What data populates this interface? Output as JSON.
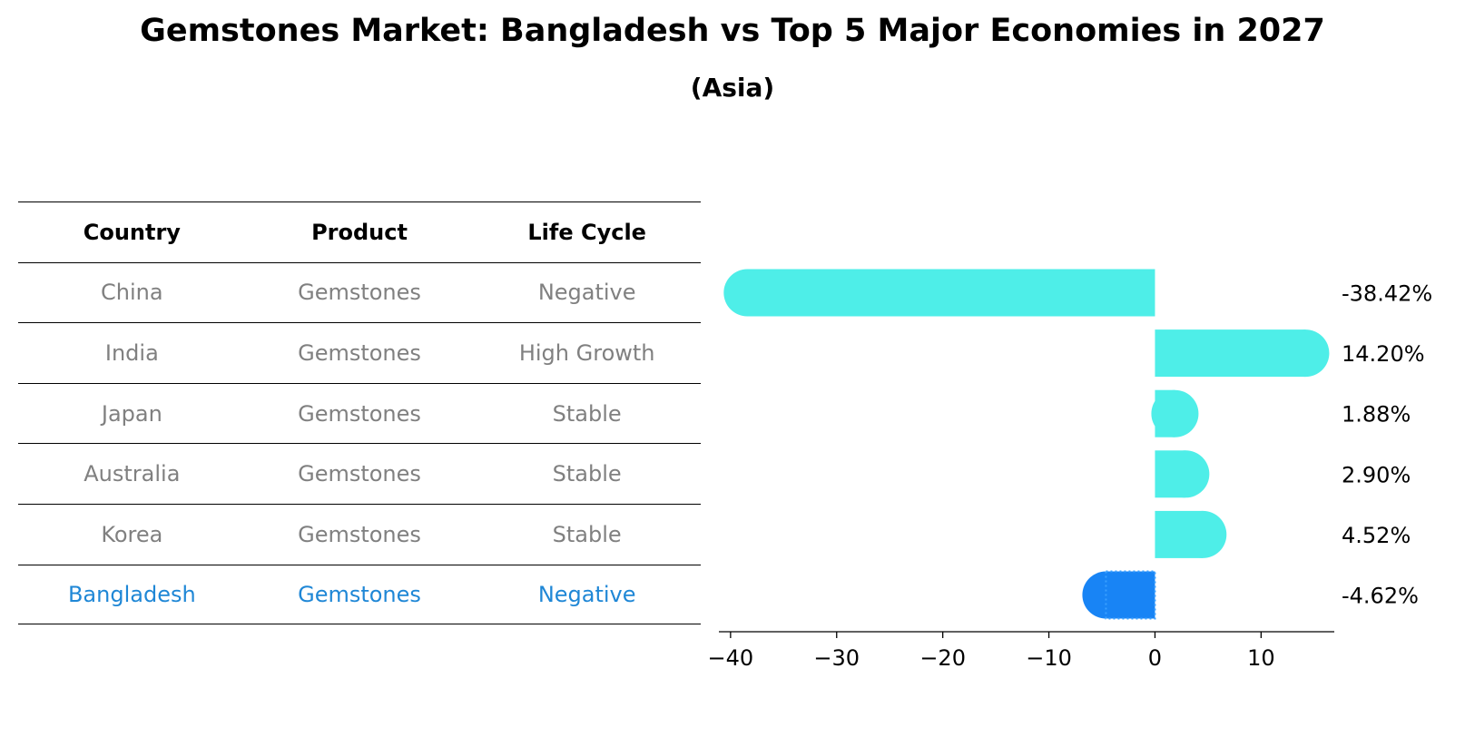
{
  "chart_data": {
    "type": "bar",
    "title": "Gemstones Market: Bangladesh vs Top 5 Major Economies in 2027",
    "subtitle": "(Asia)",
    "table": {
      "headers": [
        "Country",
        "Product",
        "Life Cycle"
      ],
      "rows": [
        [
          "China",
          "Gemstones",
          "Negative"
        ],
        [
          "India",
          "Gemstones",
          "High Growth"
        ],
        [
          "Japan",
          "Gemstones",
          "Stable"
        ],
        [
          "Australia",
          "Gemstones",
          "Stable"
        ],
        [
          "Korea",
          "Gemstones",
          "Stable"
        ],
        [
          "Bangladesh",
          "Gemstones",
          "Negative"
        ]
      ],
      "highlight_row": 5
    },
    "categories": [
      "China",
      "India",
      "Japan",
      "Australia",
      "Korea",
      "Bangladesh"
    ],
    "values": [
      -38.42,
      14.2,
      1.88,
      2.9,
      4.52,
      -4.62
    ],
    "value_labels": [
      "-38.42%",
      "14.20%",
      "1.88%",
      "2.90%",
      "4.52%",
      "-4.62%"
    ],
    "xlim": [
      -41.1,
      16.9
    ],
    "xticks": [
      -40,
      -30,
      -20,
      -10,
      0,
      10
    ],
    "xtick_labels": [
      "−40",
      "−30",
      "−20",
      "−10",
      "0",
      "10"
    ],
    "colors": {
      "bar": "#4eeee8",
      "highlight": "#1884f5",
      "muted_text": "#808080",
      "highlight_text": "#1f87d6"
    }
  }
}
